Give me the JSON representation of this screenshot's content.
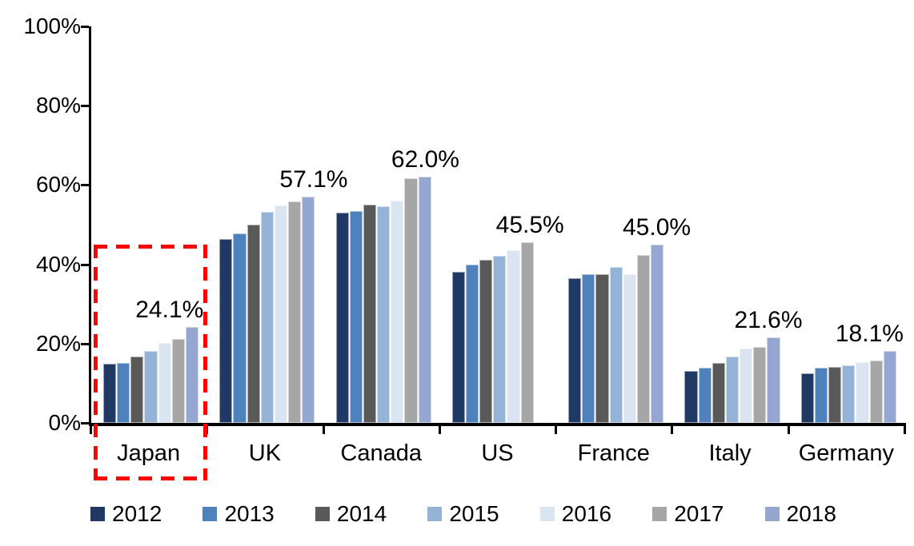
{
  "chart_data": {
    "type": "bar",
    "title": "",
    "xlabel": "",
    "ylabel": "",
    "categories": [
      "Japan",
      "UK",
      "Canada",
      "US",
      "France",
      "Italy",
      "Germany"
    ],
    "series": [
      {
        "name": "2012",
        "color": "#1F3864",
        "values": [
          14.9,
          46.3,
          53.0,
          38.2,
          36.5,
          13.1,
          12.4
        ]
      },
      {
        "name": "2013",
        "color": "#4F81BD",
        "values": [
          15.1,
          47.8,
          53.4,
          40.0,
          37.6,
          14.0,
          13.9
        ]
      },
      {
        "name": "2014",
        "color": "#595959",
        "values": [
          16.7,
          50.0,
          55.0,
          41.2,
          37.6,
          15.2,
          14.2
        ]
      },
      {
        "name": "2015",
        "color": "#95B3D7",
        "values": [
          18.1,
          53.2,
          54.7,
          42.2,
          39.4,
          16.8,
          14.6
        ]
      },
      {
        "name": "2016",
        "color": "#DBE5F1",
        "values": [
          20.2,
          54.8,
          56.1,
          43.5,
          37.4,
          18.8,
          15.4
        ]
      },
      {
        "name": "2017",
        "color": "#A6A6A6",
        "values": [
          21.2,
          55.8,
          61.7,
          45.5,
          42.3,
          19.1,
          15.8
        ]
      },
      {
        "name": "2018",
        "color": "#95A7D1",
        "values": [
          24.1,
          57.1,
          62.0,
          null,
          45.0,
          21.6,
          18.1
        ]
      }
    ],
    "annotations": [
      {
        "category": "Japan",
        "text": "24.1%"
      },
      {
        "category": "UK",
        "text": "57.1%"
      },
      {
        "category": "Canada",
        "text": "62.0%"
      },
      {
        "category": "US",
        "text": "45.5%"
      },
      {
        "category": "France",
        "text": "45.0%"
      },
      {
        "category": "Italy",
        "text": "21.6%"
      },
      {
        "category": "Germany",
        "text": "18.1%"
      }
    ],
    "y_axis": {
      "min": 0,
      "max": 100,
      "ticks": [
        "0%",
        "20%",
        "40%",
        "60%",
        "80%",
        "100%"
      ]
    },
    "legend": {
      "position": "bottom",
      "entries": [
        "2012",
        "2013",
        "2014",
        "2015",
        "2016",
        "2017",
        "2018"
      ]
    },
    "grid": false,
    "highlight": {
      "category": "Japan",
      "style": "red dashed box",
      "color": "#FE0000"
    }
  }
}
